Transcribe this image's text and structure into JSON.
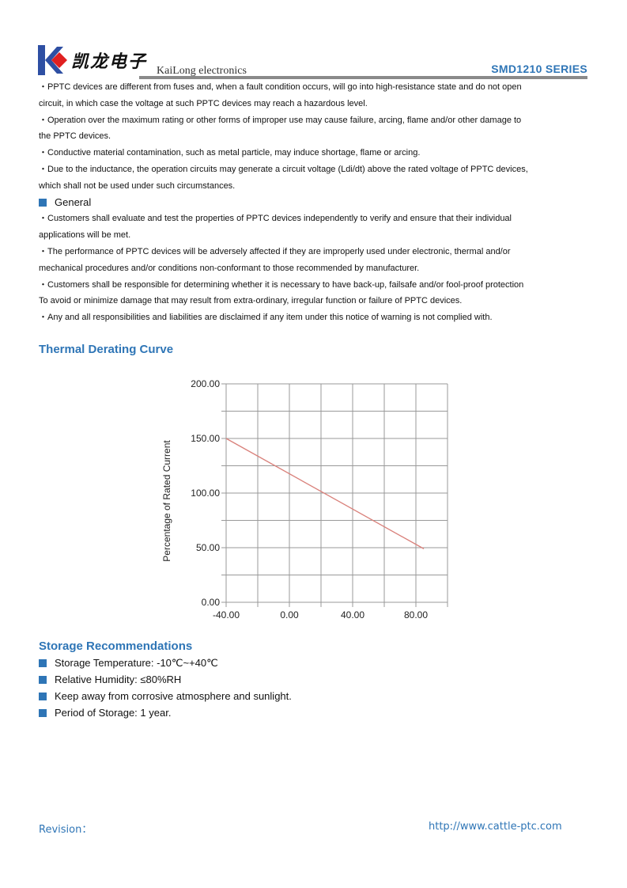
{
  "header": {
    "company_cn": "凯龙电子",
    "company_en": "KaiLong electronics",
    "series": "SMD1210   SERIES",
    "brand_colors": {
      "blue": "#2e4fa3",
      "red": "#e02020"
    }
  },
  "warnings": [
    {
      "type": "text",
      "text": "・PPTC devices are different from fuses and, when a fault condition occurs, will go into high-resistance state and do not open"
    },
    {
      "type": "text",
      "text": "circuit, in which case the voltage at such PPTC devices may reach a hazardous level."
    },
    {
      "type": "text",
      "text": "・Operation over the maximum rating or other forms of improper use may cause failure, arcing, flame and/or other damage to"
    },
    {
      "type": "text",
      "text": "the PPTC devices."
    },
    {
      "type": "text",
      "text": "・Conductive material contamination, such as metal particle, may induce shortage, flame or arcing."
    },
    {
      "type": "text",
      "text": "・Due to the inductance, the operation circuits may generate a circuit voltage (Ldi/dt) above the rated voltage of PPTC devices,"
    },
    {
      "type": "text",
      "text": "which shall not be used under such circumstances."
    },
    {
      "type": "heading",
      "text": "General"
    },
    {
      "type": "text",
      "text": "・Customers shall evaluate and test the properties of PPTC devices independently to verify and ensure that their individual"
    },
    {
      "type": "text",
      "text": "applications will be met."
    },
    {
      "type": "text",
      "text": "・The performance of PPTC devices will be adversely affected if they are improperly used under electronic, thermal and/or"
    },
    {
      "type": "text",
      "text": "mechanical procedures and/or conditions non-conformant to those recommended by manufacturer."
    },
    {
      "type": "text",
      "text": "・Customers shall be responsible for determining whether it is necessary to have back-up, failsafe and/or fool-proof protection"
    },
    {
      "type": "text",
      "text": "To avoid or minimize damage that may result from extra-ordinary, irregular function or failure of PPTC devices."
    },
    {
      "type": "text",
      "text": "・Any and all responsibilities and liabilities are disclaimed if any item under this notice of warning is not complied with."
    }
  ],
  "thermal_title": "Thermal Derating Curve",
  "chart_data": {
    "type": "line",
    "title": "",
    "xlabel": "",
    "ylabel": "Percentage of Rated Current",
    "xlim": [
      -40,
      100
    ],
    "ylim": [
      0,
      200
    ],
    "x_ticks": [
      "-40.00",
      "0.00",
      "40.00",
      "80.00"
    ],
    "y_ticks": [
      "0.00",
      "50.00",
      "100.00",
      "150.00",
      "200.00"
    ],
    "grid": true,
    "series": [
      {
        "x": [
          -40,
          85
        ],
        "y": [
          150,
          49
        ],
        "color": "#d9807a"
      }
    ]
  },
  "storage": {
    "title": "Storage Recommendations",
    "items": [
      "Storage Temperature: -10℃~+40℃",
      "Relative Humidity: ≤80%RH",
      "Keep away from corrosive atmosphere and sunlight.",
      "Period of Storage: 1 year."
    ]
  },
  "footer": {
    "revision": "Revision：",
    "url": "http://www.cattle-ptc.com"
  }
}
